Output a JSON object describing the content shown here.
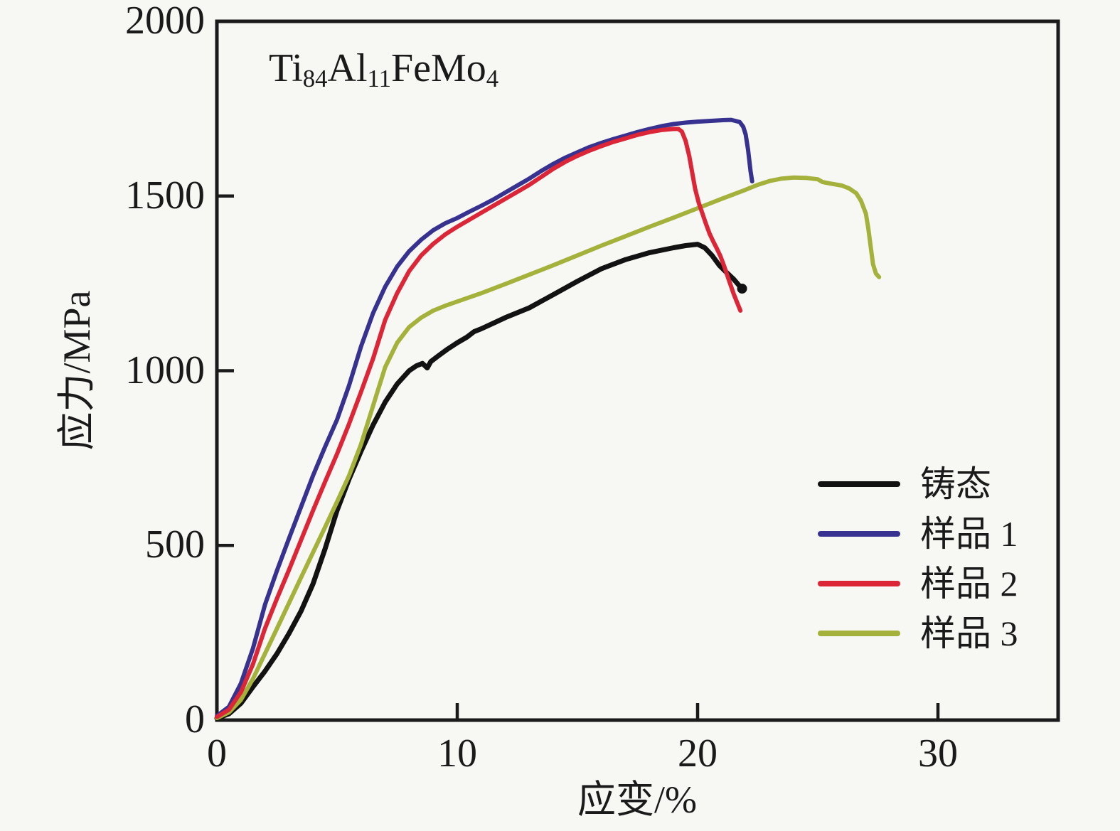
{
  "figure": {
    "background": "#f7f7f4",
    "text_color": "#1a1a1a"
  },
  "chart_data": {
    "type": "line",
    "title": "Ti84Al11FeMo4",
    "annotation": {
      "text": "Ti84Al11FeMo4",
      "parts": [
        {
          "text": "Ti"
        },
        {
          "text": "84",
          "sub": true
        },
        {
          "text": "Al"
        },
        {
          "text": "11",
          "sub": true
        },
        {
          "text": "FeMo"
        },
        {
          "text": "4",
          "sub": true
        }
      ]
    },
    "xlabel": "应变/%",
    "ylabel": "应力/MPa",
    "xlim": [
      0,
      35
    ],
    "ylim": [
      0,
      2000
    ],
    "xticks": [
      0,
      10,
      20,
      30
    ],
    "yticks": [
      0,
      500,
      1000,
      1500,
      2000
    ],
    "grid": false,
    "legend_position": "lower right",
    "axis_color": "#1a1a1a",
    "series": [
      {
        "id": "as-cast",
        "name": "铸态",
        "color": "#121212",
        "end_dot": true,
        "points": [
          [
            0,
            5
          ],
          [
            0.5,
            18
          ],
          [
            1,
            48
          ],
          [
            1.5,
            95
          ],
          [
            2,
            140
          ],
          [
            2.5,
            190
          ],
          [
            3,
            248
          ],
          [
            3.5,
            312
          ],
          [
            4,
            390
          ],
          [
            4.5,
            490
          ],
          [
            5,
            600
          ],
          [
            5.5,
            690
          ],
          [
            6,
            770
          ],
          [
            6.5,
            845
          ],
          [
            7,
            910
          ],
          [
            7.5,
            962
          ],
          [
            8,
            1000
          ],
          [
            8.3,
            1014
          ],
          [
            8.55,
            1021
          ],
          [
            8.75,
            1008
          ],
          [
            8.9,
            1026
          ],
          [
            9.2,
            1042
          ],
          [
            9.6,
            1062
          ],
          [
            10,
            1080
          ],
          [
            10.4,
            1096
          ],
          [
            10.7,
            1112
          ],
          [
            11,
            1120
          ],
          [
            11.5,
            1136
          ],
          [
            12,
            1152
          ],
          [
            13,
            1180
          ],
          [
            14,
            1218
          ],
          [
            15,
            1256
          ],
          [
            16,
            1292
          ],
          [
            17,
            1318
          ],
          [
            18,
            1338
          ],
          [
            19,
            1352
          ],
          [
            19.5,
            1358
          ],
          [
            20,
            1362
          ],
          [
            20.3,
            1352
          ],
          [
            20.6,
            1330
          ],
          [
            20.9,
            1302
          ],
          [
            21.1,
            1288
          ],
          [
            21.3,
            1275
          ],
          [
            21.5,
            1262
          ],
          [
            21.7,
            1246
          ],
          [
            21.85,
            1235
          ]
        ]
      },
      {
        "id": "sample-1",
        "name": "样品 1",
        "color": "#37328f",
        "points": [
          [
            0,
            12
          ],
          [
            0.5,
            38
          ],
          [
            1,
            105
          ],
          [
            1.5,
            205
          ],
          [
            2,
            330
          ],
          [
            2.5,
            428
          ],
          [
            3,
            520
          ],
          [
            3.5,
            610
          ],
          [
            4,
            700
          ],
          [
            4.5,
            782
          ],
          [
            5,
            860
          ],
          [
            5.5,
            958
          ],
          [
            6,
            1070
          ],
          [
            6.5,
            1165
          ],
          [
            7,
            1240
          ],
          [
            7.5,
            1298
          ],
          [
            8,
            1342
          ],
          [
            8.5,
            1375
          ],
          [
            9,
            1402
          ],
          [
            9.5,
            1422
          ],
          [
            10,
            1437
          ],
          [
            10.5,
            1455
          ],
          [
            11,
            1472
          ],
          [
            11.5,
            1490
          ],
          [
            12,
            1510
          ],
          [
            12.5,
            1530
          ],
          [
            13,
            1550
          ],
          [
            13.5,
            1572
          ],
          [
            14,
            1592
          ],
          [
            14.5,
            1610
          ],
          [
            15,
            1625
          ],
          [
            15.5,
            1640
          ],
          [
            16,
            1652
          ],
          [
            16.5,
            1663
          ],
          [
            17,
            1673
          ],
          [
            17.5,
            1683
          ],
          [
            18,
            1692
          ],
          [
            18.5,
            1700
          ],
          [
            19,
            1706
          ],
          [
            19.5,
            1710
          ],
          [
            20,
            1713
          ],
          [
            20.5,
            1715
          ],
          [
            21,
            1717
          ],
          [
            21.4,
            1718
          ],
          [
            21.75,
            1712
          ],
          [
            21.9,
            1698
          ],
          [
            22,
            1676
          ],
          [
            22.1,
            1632
          ],
          [
            22.2,
            1572
          ],
          [
            22.27,
            1542
          ]
        ]
      },
      {
        "id": "sample-2",
        "name": "样品 2",
        "color": "#dc2536",
        "points": [
          [
            0,
            9
          ],
          [
            0.5,
            30
          ],
          [
            1,
            80
          ],
          [
            1.5,
            160
          ],
          [
            2,
            262
          ],
          [
            2.5,
            348
          ],
          [
            3,
            430
          ],
          [
            3.5,
            515
          ],
          [
            4,
            600
          ],
          [
            4.5,
            682
          ],
          [
            5,
            762
          ],
          [
            5.5,
            848
          ],
          [
            6,
            940
          ],
          [
            6.5,
            1035
          ],
          [
            7,
            1145
          ],
          [
            7.5,
            1222
          ],
          [
            8,
            1285
          ],
          [
            8.5,
            1330
          ],
          [
            9,
            1363
          ],
          [
            9.5,
            1390
          ],
          [
            10,
            1412
          ],
          [
            10.5,
            1432
          ],
          [
            11,
            1452
          ],
          [
            11.5,
            1472
          ],
          [
            12,
            1492
          ],
          [
            12.5,
            1512
          ],
          [
            13,
            1532
          ],
          [
            13.5,
            1555
          ],
          [
            14,
            1578
          ],
          [
            14.5,
            1598
          ],
          [
            15,
            1615
          ],
          [
            15.5,
            1630
          ],
          [
            16,
            1643
          ],
          [
            16.5,
            1655
          ],
          [
            17,
            1665
          ],
          [
            17.5,
            1675
          ],
          [
            18,
            1683
          ],
          [
            18.5,
            1689
          ],
          [
            19,
            1692
          ],
          [
            19.2,
            1692
          ],
          [
            19.35,
            1684
          ],
          [
            19.5,
            1658
          ],
          [
            19.65,
            1615
          ],
          [
            19.78,
            1565
          ],
          [
            19.9,
            1520
          ],
          [
            20.05,
            1480
          ],
          [
            20.2,
            1450
          ],
          [
            20.35,
            1420
          ],
          [
            20.5,
            1392
          ],
          [
            20.65,
            1370
          ],
          [
            20.8,
            1350
          ],
          [
            20.95,
            1328
          ],
          [
            21.1,
            1300
          ],
          [
            21.3,
            1260
          ],
          [
            21.5,
            1220
          ],
          [
            21.65,
            1194
          ],
          [
            21.78,
            1172
          ]
        ]
      },
      {
        "id": "sample-3",
        "name": "样品 3",
        "color": "#a4b13a",
        "points": [
          [
            0,
            6
          ],
          [
            0.5,
            22
          ],
          [
            1,
            58
          ],
          [
            1.5,
            118
          ],
          [
            2,
            190
          ],
          [
            2.5,
            262
          ],
          [
            3,
            335
          ],
          [
            3.5,
            408
          ],
          [
            4,
            480
          ],
          [
            4.5,
            552
          ],
          [
            5,
            625
          ],
          [
            5.5,
            700
          ],
          [
            6,
            790
          ],
          [
            6.5,
            900
          ],
          [
            7,
            1010
          ],
          [
            7.5,
            1080
          ],
          [
            8,
            1125
          ],
          [
            8.5,
            1152
          ],
          [
            9,
            1172
          ],
          [
            9.5,
            1186
          ],
          [
            10,
            1198
          ],
          [
            11,
            1222
          ],
          [
            12,
            1248
          ],
          [
            13,
            1275
          ],
          [
            14,
            1302
          ],
          [
            15,
            1330
          ],
          [
            16,
            1358
          ],
          [
            17,
            1385
          ],
          [
            18,
            1412
          ],
          [
            19,
            1438
          ],
          [
            20,
            1465
          ],
          [
            21,
            1492
          ],
          [
            21.5,
            1505
          ],
          [
            22,
            1518
          ],
          [
            22.5,
            1532
          ],
          [
            23,
            1543
          ],
          [
            23.5,
            1550
          ],
          [
            24,
            1553
          ],
          [
            24.5,
            1552
          ],
          [
            25,
            1548
          ],
          [
            25.2,
            1540
          ],
          [
            25.5,
            1536
          ],
          [
            26,
            1530
          ],
          [
            26.3,
            1522
          ],
          [
            26.6,
            1508
          ],
          [
            26.8,
            1486
          ],
          [
            27,
            1450
          ],
          [
            27.1,
            1408
          ],
          [
            27.2,
            1355
          ],
          [
            27.3,
            1305
          ],
          [
            27.42,
            1278
          ],
          [
            27.55,
            1268
          ]
        ]
      }
    ]
  }
}
